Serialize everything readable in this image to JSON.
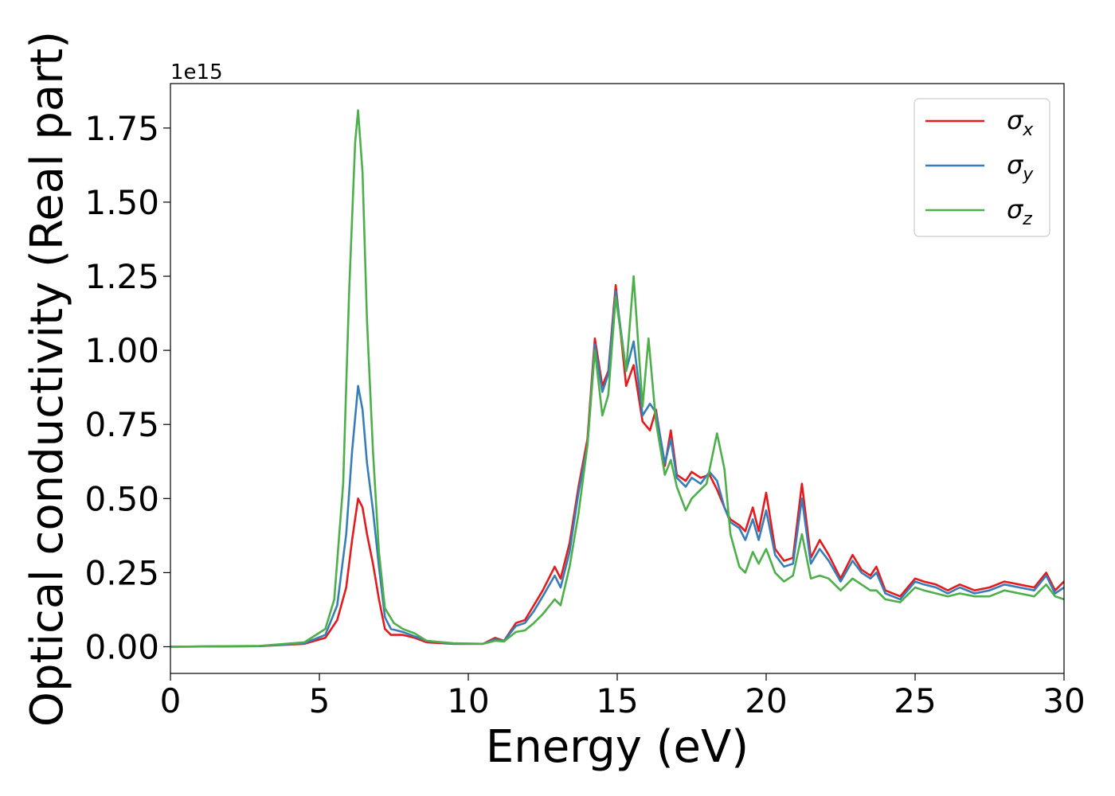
{
  "chart_data": {
    "type": "line",
    "title": "",
    "xlabel": "Energy (eV)",
    "ylabel": "Optical conductivity (Real part)",
    "y_offset_label": "1e15",
    "xlim": [
      0,
      30
    ],
    "ylim": [
      -0.09,
      1.9
    ],
    "xticks": [
      0,
      5,
      10,
      15,
      20,
      25,
      30
    ],
    "xtick_labels": [
      "0",
      "5",
      "10",
      "15",
      "20",
      "25",
      "30"
    ],
    "yticks": [
      0.0,
      0.25,
      0.5,
      0.75,
      1.0,
      1.25,
      1.5,
      1.75
    ],
    "ytick_labels": [
      "0.00",
      "0.25",
      "0.50",
      "0.75",
      "1.00",
      "1.25",
      "1.50",
      "1.75"
    ],
    "grid": false,
    "legend_position": "top-right",
    "series": [
      {
        "name": "σx",
        "legend_base": "σ",
        "legend_sub": "x",
        "color": "#e41a1c",
        "points": [
          [
            0,
            0
          ],
          [
            3,
            0.002
          ],
          [
            4.5,
            0.01
          ],
          [
            5.2,
            0.03
          ],
          [
            5.6,
            0.09
          ],
          [
            5.9,
            0.2
          ],
          [
            6.1,
            0.36
          ],
          [
            6.3,
            0.5
          ],
          [
            6.45,
            0.47
          ],
          [
            6.6,
            0.38
          ],
          [
            6.8,
            0.28
          ],
          [
            7.0,
            0.16
          ],
          [
            7.2,
            0.06
          ],
          [
            7.4,
            0.04
          ],
          [
            7.8,
            0.04
          ],
          [
            8.2,
            0.03
          ],
          [
            8.6,
            0.015
          ],
          [
            9.5,
            0.01
          ],
          [
            10.5,
            0.01
          ],
          [
            10.9,
            0.03
          ],
          [
            11.2,
            0.02
          ],
          [
            11.6,
            0.08
          ],
          [
            11.9,
            0.09
          ],
          [
            12.2,
            0.14
          ],
          [
            12.5,
            0.19
          ],
          [
            12.9,
            0.27
          ],
          [
            13.1,
            0.23
          ],
          [
            13.4,
            0.35
          ],
          [
            13.7,
            0.54
          ],
          [
            14.0,
            0.7
          ],
          [
            14.25,
            1.04
          ],
          [
            14.5,
            0.88
          ],
          [
            14.7,
            0.93
          ],
          [
            14.95,
            1.22
          ],
          [
            15.3,
            0.88
          ],
          [
            15.55,
            0.95
          ],
          [
            15.85,
            0.76
          ],
          [
            16.1,
            0.73
          ],
          [
            16.3,
            0.8
          ],
          [
            16.6,
            0.61
          ],
          [
            16.8,
            0.73
          ],
          [
            17.0,
            0.58
          ],
          [
            17.3,
            0.56
          ],
          [
            17.5,
            0.59
          ],
          [
            17.8,
            0.57
          ],
          [
            18.1,
            0.58
          ],
          [
            18.35,
            0.53
          ],
          [
            18.6,
            0.47
          ],
          [
            18.8,
            0.43
          ],
          [
            19.1,
            0.41
          ],
          [
            19.3,
            0.39
          ],
          [
            19.55,
            0.47
          ],
          [
            19.75,
            0.39
          ],
          [
            20.0,
            0.52
          ],
          [
            20.3,
            0.33
          ],
          [
            20.6,
            0.29
          ],
          [
            20.9,
            0.3
          ],
          [
            21.2,
            0.55
          ],
          [
            21.5,
            0.3
          ],
          [
            21.8,
            0.36
          ],
          [
            22.1,
            0.31
          ],
          [
            22.5,
            0.23
          ],
          [
            22.9,
            0.31
          ],
          [
            23.2,
            0.26
          ],
          [
            23.5,
            0.24
          ],
          [
            23.7,
            0.27
          ],
          [
            24.0,
            0.19
          ],
          [
            24.5,
            0.17
          ],
          [
            25.0,
            0.23
          ],
          [
            25.3,
            0.22
          ],
          [
            25.7,
            0.21
          ],
          [
            26.1,
            0.19
          ],
          [
            26.5,
            0.21
          ],
          [
            27.0,
            0.19
          ],
          [
            27.5,
            0.2
          ],
          [
            28.0,
            0.22
          ],
          [
            28.5,
            0.21
          ],
          [
            29.0,
            0.2
          ],
          [
            29.4,
            0.25
          ],
          [
            29.7,
            0.19
          ],
          [
            30.0,
            0.22
          ]
        ]
      },
      {
        "name": "σy",
        "legend_base": "σ",
        "legend_sub": "y",
        "color": "#377eb8",
        "points": [
          [
            0,
            0
          ],
          [
            3,
            0.002
          ],
          [
            4.5,
            0.012
          ],
          [
            5.2,
            0.04
          ],
          [
            5.6,
            0.14
          ],
          [
            5.9,
            0.38
          ],
          [
            6.1,
            0.66
          ],
          [
            6.3,
            0.88
          ],
          [
            6.45,
            0.8
          ],
          [
            6.6,
            0.62
          ],
          [
            6.8,
            0.46
          ],
          [
            7.0,
            0.27
          ],
          [
            7.2,
            0.1
          ],
          [
            7.4,
            0.06
          ],
          [
            7.8,
            0.05
          ],
          [
            8.2,
            0.035
          ],
          [
            8.6,
            0.02
          ],
          [
            9.5,
            0.01
          ],
          [
            10.5,
            0.01
          ],
          [
            10.9,
            0.025
          ],
          [
            11.2,
            0.02
          ],
          [
            11.6,
            0.07
          ],
          [
            11.9,
            0.08
          ],
          [
            12.2,
            0.12
          ],
          [
            12.5,
            0.17
          ],
          [
            12.9,
            0.24
          ],
          [
            13.1,
            0.2
          ],
          [
            13.4,
            0.32
          ],
          [
            13.7,
            0.52
          ],
          [
            14.0,
            0.68
          ],
          [
            14.25,
            1.02
          ],
          [
            14.5,
            0.86
          ],
          [
            14.7,
            0.92
          ],
          [
            14.95,
            1.2
          ],
          [
            15.3,
            0.93
          ],
          [
            15.55,
            1.03
          ],
          [
            15.85,
            0.78
          ],
          [
            16.1,
            0.82
          ],
          [
            16.3,
            0.79
          ],
          [
            16.6,
            0.62
          ],
          [
            16.8,
            0.7
          ],
          [
            17.0,
            0.57
          ],
          [
            17.3,
            0.54
          ],
          [
            17.5,
            0.57
          ],
          [
            17.8,
            0.55
          ],
          [
            18.1,
            0.59
          ],
          [
            18.35,
            0.56
          ],
          [
            18.6,
            0.47
          ],
          [
            18.8,
            0.42
          ],
          [
            19.1,
            0.4
          ],
          [
            19.3,
            0.36
          ],
          [
            19.55,
            0.43
          ],
          [
            19.75,
            0.36
          ],
          [
            20.0,
            0.46
          ],
          [
            20.3,
            0.31
          ],
          [
            20.6,
            0.27
          ],
          [
            20.9,
            0.28
          ],
          [
            21.2,
            0.5
          ],
          [
            21.5,
            0.28
          ],
          [
            21.8,
            0.33
          ],
          [
            22.1,
            0.29
          ],
          [
            22.5,
            0.22
          ],
          [
            22.9,
            0.29
          ],
          [
            23.2,
            0.25
          ],
          [
            23.5,
            0.23
          ],
          [
            23.7,
            0.25
          ],
          [
            24.0,
            0.18
          ],
          [
            24.5,
            0.16
          ],
          [
            25.0,
            0.22
          ],
          [
            25.3,
            0.21
          ],
          [
            25.7,
            0.2
          ],
          [
            26.1,
            0.18
          ],
          [
            26.5,
            0.2
          ],
          [
            27.0,
            0.18
          ],
          [
            27.5,
            0.19
          ],
          [
            28.0,
            0.21
          ],
          [
            28.5,
            0.2
          ],
          [
            29.0,
            0.19
          ],
          [
            29.4,
            0.24
          ],
          [
            29.7,
            0.18
          ],
          [
            30.0,
            0.2
          ]
        ]
      },
      {
        "name": "σz",
        "legend_base": "σ",
        "legend_sub": "z",
        "color": "#4daf4a",
        "points": [
          [
            0,
            0
          ],
          [
            3,
            0.003
          ],
          [
            4.5,
            0.015
          ],
          [
            5.2,
            0.06
          ],
          [
            5.5,
            0.16
          ],
          [
            5.8,
            0.55
          ],
          [
            6.0,
            1.2
          ],
          [
            6.2,
            1.7
          ],
          [
            6.3,
            1.81
          ],
          [
            6.45,
            1.6
          ],
          [
            6.6,
            1.1
          ],
          [
            6.8,
            0.66
          ],
          [
            7.0,
            0.32
          ],
          [
            7.2,
            0.13
          ],
          [
            7.5,
            0.08
          ],
          [
            7.8,
            0.06
          ],
          [
            8.2,
            0.045
          ],
          [
            8.6,
            0.02
          ],
          [
            9.5,
            0.012
          ],
          [
            10.5,
            0.01
          ],
          [
            10.9,
            0.02
          ],
          [
            11.2,
            0.018
          ],
          [
            11.6,
            0.05
          ],
          [
            11.9,
            0.055
          ],
          [
            12.2,
            0.08
          ],
          [
            12.5,
            0.11
          ],
          [
            12.9,
            0.16
          ],
          [
            13.1,
            0.14
          ],
          [
            13.4,
            0.27
          ],
          [
            13.7,
            0.45
          ],
          [
            14.0,
            0.68
          ],
          [
            14.25,
            1.0
          ],
          [
            14.5,
            0.78
          ],
          [
            14.7,
            0.85
          ],
          [
            14.95,
            1.18
          ],
          [
            15.3,
            0.93
          ],
          [
            15.55,
            1.25
          ],
          [
            15.85,
            0.81
          ],
          [
            16.05,
            1.04
          ],
          [
            16.3,
            0.76
          ],
          [
            16.6,
            0.58
          ],
          [
            16.8,
            0.63
          ],
          [
            17.0,
            0.54
          ],
          [
            17.3,
            0.46
          ],
          [
            17.5,
            0.5
          ],
          [
            17.8,
            0.53
          ],
          [
            18.0,
            0.55
          ],
          [
            18.35,
            0.72
          ],
          [
            18.6,
            0.6
          ],
          [
            18.8,
            0.38
          ],
          [
            19.1,
            0.27
          ],
          [
            19.3,
            0.25
          ],
          [
            19.55,
            0.32
          ],
          [
            19.75,
            0.28
          ],
          [
            20.0,
            0.33
          ],
          [
            20.3,
            0.25
          ],
          [
            20.6,
            0.22
          ],
          [
            20.9,
            0.24
          ],
          [
            21.2,
            0.38
          ],
          [
            21.5,
            0.23
          ],
          [
            21.8,
            0.24
          ],
          [
            22.1,
            0.23
          ],
          [
            22.5,
            0.19
          ],
          [
            22.9,
            0.23
          ],
          [
            23.2,
            0.21
          ],
          [
            23.5,
            0.19
          ],
          [
            23.7,
            0.19
          ],
          [
            24.0,
            0.16
          ],
          [
            24.5,
            0.15
          ],
          [
            25.0,
            0.2
          ],
          [
            25.3,
            0.19
          ],
          [
            25.7,
            0.18
          ],
          [
            26.1,
            0.17
          ],
          [
            26.5,
            0.18
          ],
          [
            27.0,
            0.17
          ],
          [
            27.5,
            0.17
          ],
          [
            28.0,
            0.19
          ],
          [
            28.5,
            0.18
          ],
          [
            29.0,
            0.17
          ],
          [
            29.4,
            0.21
          ],
          [
            29.7,
            0.17
          ],
          [
            30.0,
            0.16
          ]
        ]
      }
    ]
  }
}
